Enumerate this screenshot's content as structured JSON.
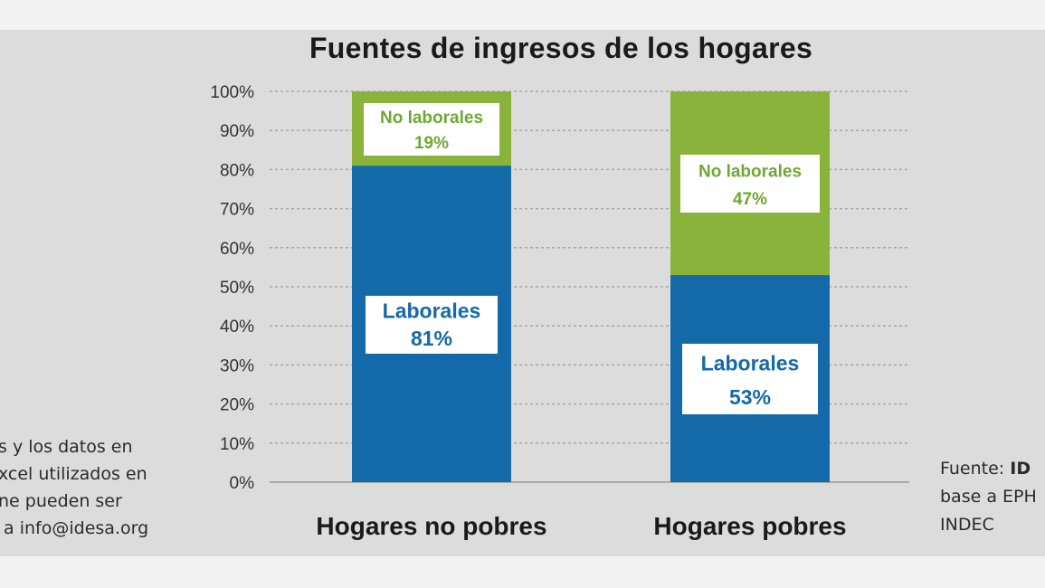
{
  "chart_data": {
    "type": "bar",
    "stacked": true,
    "percent": true,
    "title": "Fuentes de ingresos de los hogares",
    "categories": [
      "Hogares no pobres",
      "Hogares pobres"
    ],
    "series": [
      {
        "label": "Laborales",
        "values": [
          81,
          53
        ],
        "color": "#1469a8"
      },
      {
        "label": "No laborales",
        "values": [
          19,
          47
        ],
        "color": "#8ab33c"
      }
    ],
    "data_labels": [
      [
        "Laborales",
        "81%"
      ],
      [
        "Laborales",
        "53%"
      ],
      [
        "No laborales",
        "19%"
      ],
      [
        "No laborales",
        "47%"
      ]
    ],
    "ylim": [
      0,
      100
    ],
    "yticks": [
      "0%",
      "10%",
      "20%",
      "30%",
      "40%",
      "50%",
      "60%",
      "70%",
      "80%",
      "90%",
      "100%"
    ],
    "grid": true,
    "label_colors": {
      "Laborales": "#1469a8",
      "No laborales": "#6ea832"
    }
  },
  "notes": {
    "left": "s y los datos en\nxcel utilizados en\nne pueden ser\n a info@idesa.org",
    "right_prefix": "Fuente: ",
    "right_bold": "ID",
    "right_rest": "\nbase a EPH\nINDEC"
  }
}
